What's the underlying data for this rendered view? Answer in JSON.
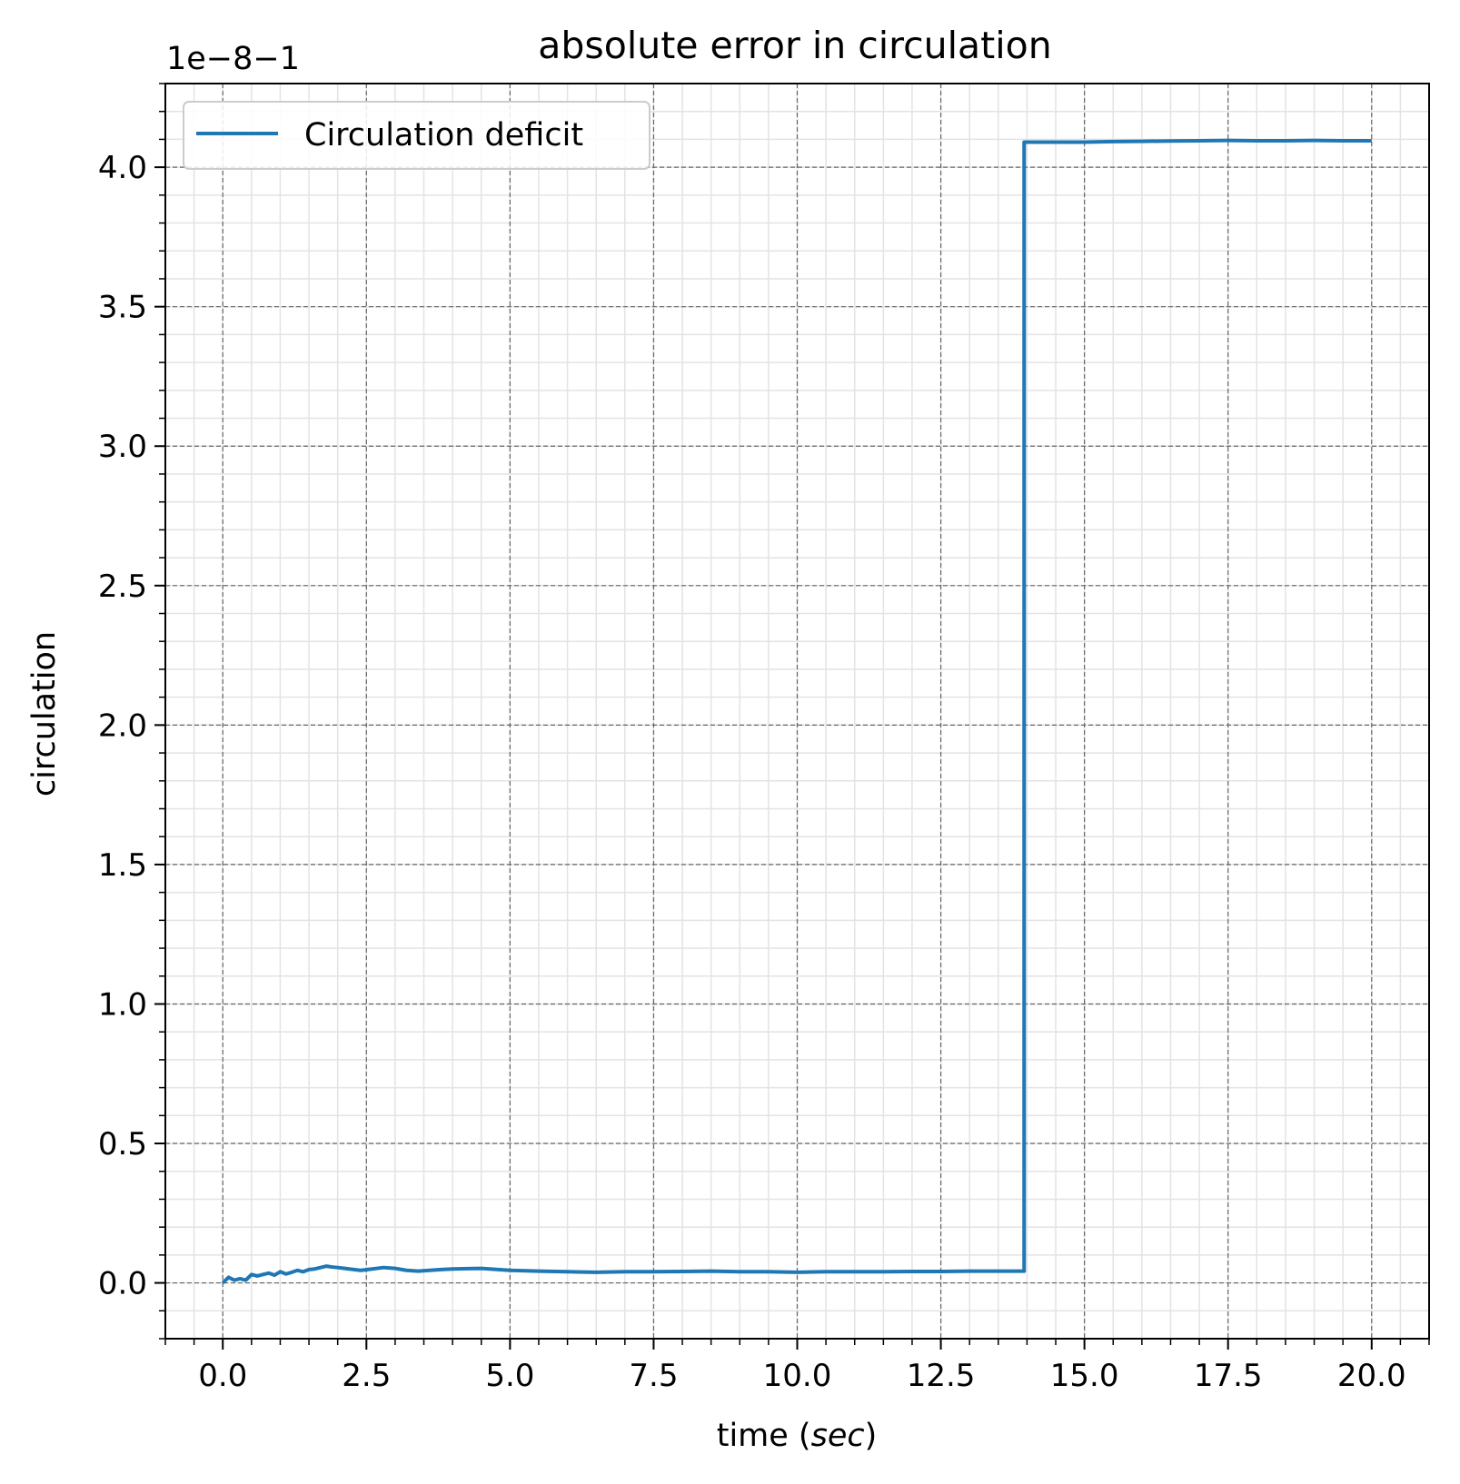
{
  "chart_data": {
    "type": "line",
    "title": "absolute error in circulation",
    "xlabel_prefix": "time (",
    "xlabel_unit": "sec",
    "xlabel_suffix": ")",
    "ylabel": "circulation",
    "y_offset_label": "1e−8−1",
    "xlim": [
      -1.0,
      21.0
    ],
    "ylim": [
      -0.2,
      4.3
    ],
    "x_ticks": [
      0.0,
      2.5,
      5.0,
      7.5,
      10.0,
      12.5,
      15.0,
      17.5,
      20.0
    ],
    "x_tick_labels": [
      "0.0",
      "2.5",
      "5.0",
      "7.5",
      "10.0",
      "12.5",
      "15.0",
      "17.5",
      "20.0"
    ],
    "y_ticks": [
      0.0,
      0.5,
      1.0,
      1.5,
      2.0,
      2.5,
      3.0,
      3.5,
      4.0
    ],
    "y_tick_labels": [
      "0.0",
      "0.5",
      "1.0",
      "1.5",
      "2.0",
      "2.5",
      "3.0",
      "3.5",
      "4.0"
    ],
    "x_minor_step": 0.5,
    "y_minor_step": 0.1,
    "grid": {
      "major": true,
      "minor": true,
      "major_style": "dashed",
      "minor_style": "solid"
    },
    "legend": {
      "placement": "top-left"
    },
    "series": [
      {
        "name": "Circulation deficit",
        "color": "#1f77b4",
        "points": [
          [
            0.0,
            0.0
          ],
          [
            0.1,
            0.02
          ],
          [
            0.2,
            0.01
          ],
          [
            0.3,
            0.015
          ],
          [
            0.4,
            0.01
          ],
          [
            0.5,
            0.03
          ],
          [
            0.6,
            0.025
          ],
          [
            0.7,
            0.03
          ],
          [
            0.8,
            0.035
          ],
          [
            0.9,
            0.028
          ],
          [
            1.0,
            0.04
          ],
          [
            1.1,
            0.032
          ],
          [
            1.2,
            0.038
          ],
          [
            1.3,
            0.045
          ],
          [
            1.4,
            0.04
          ],
          [
            1.5,
            0.048
          ],
          [
            1.6,
            0.05
          ],
          [
            1.7,
            0.055
          ],
          [
            1.8,
            0.06
          ],
          [
            1.9,
            0.057
          ],
          [
            2.0,
            0.055
          ],
          [
            2.2,
            0.05
          ],
          [
            2.4,
            0.045
          ],
          [
            2.6,
            0.05
          ],
          [
            2.8,
            0.055
          ],
          [
            3.0,
            0.052
          ],
          [
            3.2,
            0.045
          ],
          [
            3.4,
            0.042
          ],
          [
            3.6,
            0.045
          ],
          [
            3.8,
            0.048
          ],
          [
            4.0,
            0.05
          ],
          [
            4.5,
            0.052
          ],
          [
            5.0,
            0.045
          ],
          [
            5.5,
            0.042
          ],
          [
            6.0,
            0.04
          ],
          [
            6.5,
            0.038
          ],
          [
            7.0,
            0.04
          ],
          [
            7.5,
            0.04
          ],
          [
            8.0,
            0.041
          ],
          [
            8.5,
            0.042
          ],
          [
            9.0,
            0.04
          ],
          [
            9.5,
            0.04
          ],
          [
            10.0,
            0.038
          ],
          [
            10.5,
            0.04
          ],
          [
            11.0,
            0.04
          ],
          [
            11.5,
            0.04
          ],
          [
            12.0,
            0.041
          ],
          [
            12.5,
            0.041
          ],
          [
            13.0,
            0.042
          ],
          [
            13.5,
            0.042
          ],
          [
            13.95,
            0.042
          ],
          [
            13.95,
            4.09
          ],
          [
            14.5,
            4.09
          ],
          [
            15.0,
            4.09
          ],
          [
            15.5,
            4.092
          ],
          [
            16.0,
            4.093
          ],
          [
            16.5,
            4.094
          ],
          [
            17.0,
            4.095
          ],
          [
            17.5,
            4.096
          ],
          [
            18.0,
            4.095
          ],
          [
            18.5,
            4.095
          ],
          [
            19.0,
            4.096
          ],
          [
            19.5,
            4.095
          ],
          [
            20.0,
            4.095
          ]
        ]
      }
    ]
  }
}
